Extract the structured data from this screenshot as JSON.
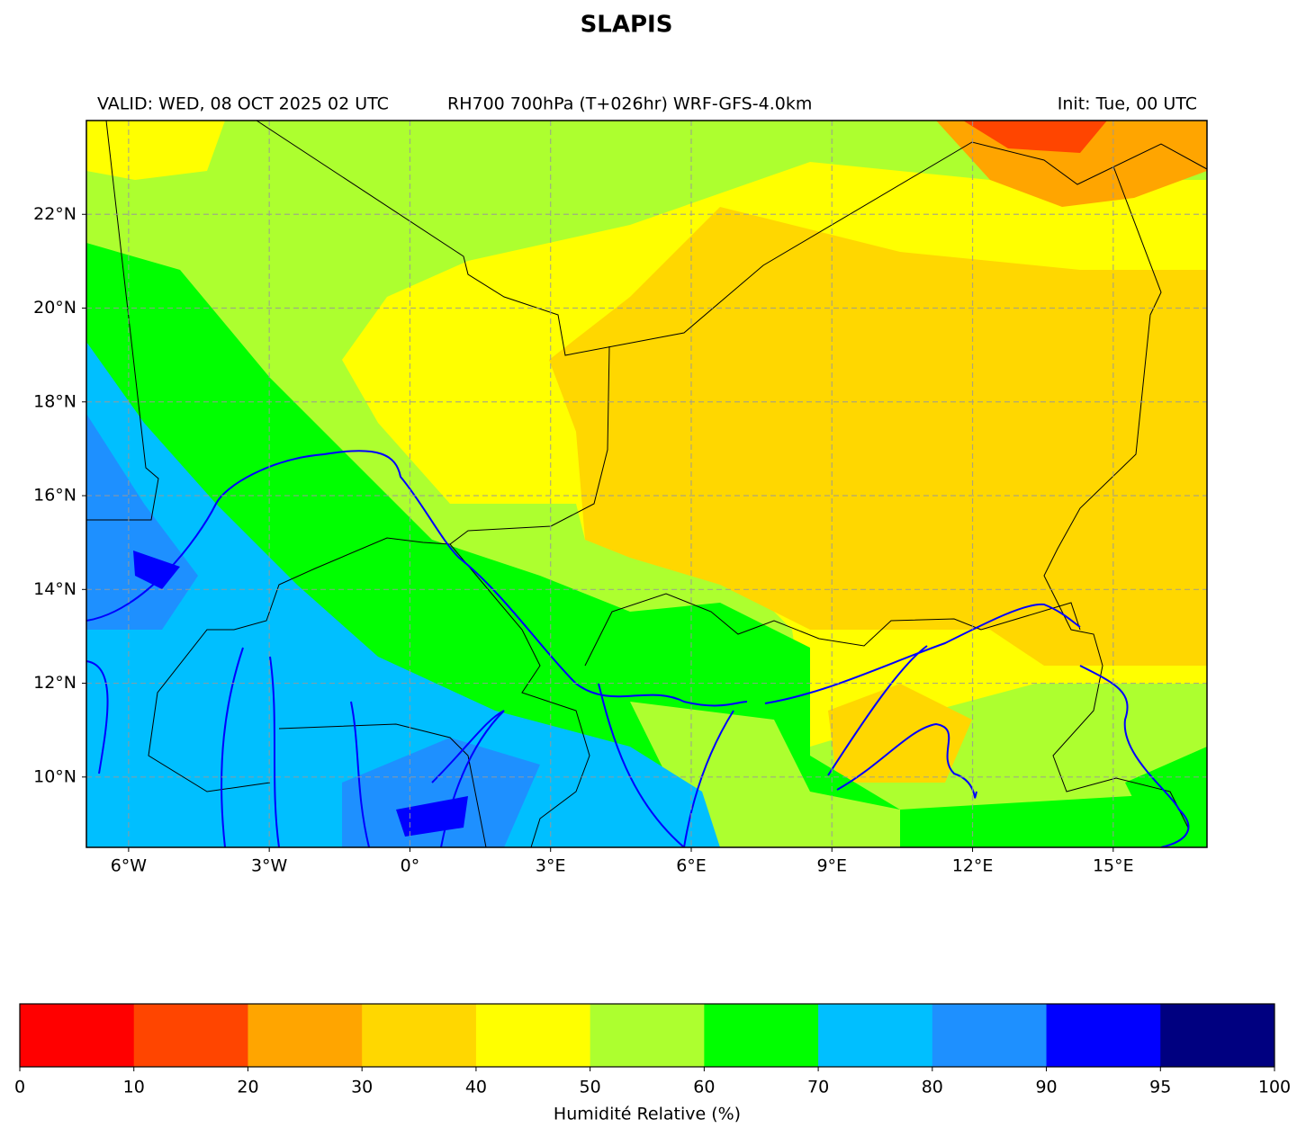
{
  "chart_data": {
    "type": "map",
    "title": "SLAPIS",
    "subtitle_left": "VALID: WED, 08 OCT 2025 02 UTC",
    "subtitle_center": "RH700 700hPa (T+026hr) WRF-GFS-4.0km",
    "subtitle_right": "Init: Tue, 00 UTC",
    "xlim": [
      -6.9,
      17.0
    ],
    "ylim": [
      8.5,
      24.0
    ],
    "xticks": [
      {
        "value": -6,
        "label": "6°W"
      },
      {
        "value": -3,
        "label": "3°W"
      },
      {
        "value": 0,
        "label": "0°"
      },
      {
        "value": 3,
        "label": "3°E"
      },
      {
        "value": 6,
        "label": "6°E"
      },
      {
        "value": 9,
        "label": "9°E"
      },
      {
        "value": 12,
        "label": "12°E"
      },
      {
        "value": 15,
        "label": "15°E"
      }
    ],
    "yticks": [
      {
        "value": 10,
        "label": "10°N"
      },
      {
        "value": 12,
        "label": "12°N"
      },
      {
        "value": 14,
        "label": "14°N"
      },
      {
        "value": 16,
        "label": "16°N"
      },
      {
        "value": 18,
        "label": "18°N"
      },
      {
        "value": 20,
        "label": "20°N"
      },
      {
        "value": 22,
        "label": "22°N"
      }
    ],
    "grid": true,
    "colorbar": {
      "label": "Humidité Relative (%)",
      "boundaries": [
        0,
        10,
        20,
        30,
        40,
        50,
        60,
        70,
        80,
        90,
        95,
        100
      ],
      "colors": [
        "#ff0000",
        "#ff4500",
        "#ffa500",
        "#ffd700",
        "#ffff00",
        "#adff2f",
        "#00ff00",
        "#00bfff",
        "#1e90ff",
        "#0000ff",
        "#000080"
      ]
    }
  }
}
